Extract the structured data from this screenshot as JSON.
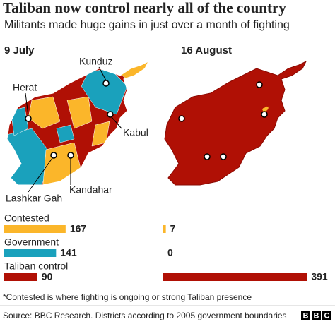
{
  "title": "Taliban now control nearly all of the country",
  "subtitle": "Militants made huge gains in just over a month of fighting",
  "categories": [
    "Contested",
    "Government",
    "Taliban control"
  ],
  "colors": [
    "#fbb62a",
    "#1aa1bc",
    "#b01005"
  ],
  "panels": [
    {
      "date": "9 July",
      "values": [
        167,
        141,
        90
      ],
      "cities": [
        "Kunduz",
        "Herat",
        "Kabul",
        "Lashkar Gah",
        "Kandahar"
      ]
    },
    {
      "date": "16 August",
      "values": [
        7,
        0,
        391
      ]
    }
  ],
  "footnote": "*Contested is where fighting is ongoing or strong Taliban presence",
  "source": "Source: BBC Research. Districts according to 2005 government boundaries",
  "logo": [
    "B",
    "B",
    "C"
  ]
}
